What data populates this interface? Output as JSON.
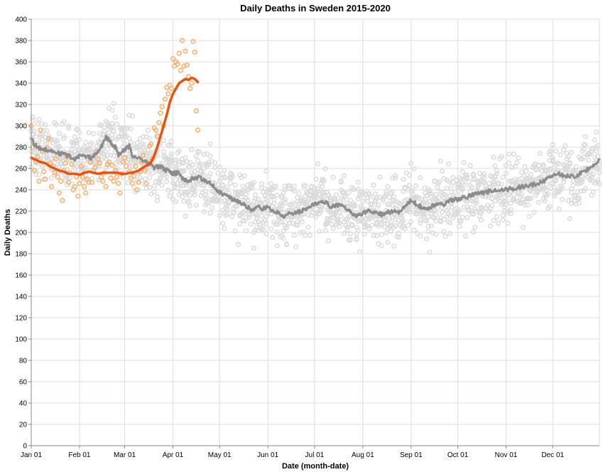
{
  "chart_data": {
    "type": "scatter",
    "title": "Daily Deaths in Sweden 2015-2020",
    "xlabel": "Date (month-date)",
    "ylabel": "Daily Deaths",
    "x_axis": {
      "type": "day-of-year",
      "range": [
        1,
        366
      ],
      "tick_labels": [
        "Jan 01",
        "Feb 01",
        "Mar 01",
        "Apr 01",
        "May 01",
        "Jun 01",
        "Jul 01",
        "Aug 01",
        "Sep 01",
        "Oct 01",
        "Nov 01",
        "Dec 01"
      ],
      "tick_days": [
        1,
        32,
        61,
        92,
        122,
        153,
        183,
        214,
        245,
        275,
        306,
        336
      ]
    },
    "y_axis": {
      "range": [
        0,
        400
      ],
      "ticks": [
        0,
        20,
        40,
        60,
        80,
        100,
        120,
        140,
        160,
        180,
        200,
        220,
        240,
        260,
        280,
        300,
        320,
        340,
        360,
        380,
        400
      ]
    },
    "grid": true,
    "legend": "none",
    "series": [
      {
        "kind": "scatter",
        "color": "#d9d9d9",
        "description_of_density": "5 years of daily values (2015-2019) shown as hollow grey circles",
        "daily_points": "generated from the grey trend line with scatter of about ±25 deaths per year",
        "points_per_day": 5
      },
      {
        "kind": "line",
        "color": "#8c8c8c",
        "line_width": 3,
        "points": [
          [
            1,
            290
          ],
          [
            3,
            282
          ],
          [
            6,
            279
          ],
          [
            10,
            278
          ],
          [
            15,
            276
          ],
          [
            20,
            274
          ],
          [
            25,
            272
          ],
          [
            28,
            268
          ],
          [
            32,
            272
          ],
          [
            36,
            271
          ],
          [
            40,
            270
          ],
          [
            44,
            275
          ],
          [
            47,
            283
          ],
          [
            49,
            290
          ],
          [
            52,
            284
          ],
          [
            55,
            280
          ],
          [
            57,
            273
          ],
          [
            60,
            276
          ],
          [
            62,
            278
          ],
          [
            64,
            281
          ],
          [
            66,
            272
          ],
          [
            70,
            270
          ],
          [
            73,
            268
          ],
          [
            76,
            265
          ],
          [
            80,
            261
          ],
          [
            84,
            262
          ],
          [
            88,
            258
          ],
          [
            92,
            255
          ],
          [
            95,
            256
          ],
          [
            98,
            251
          ],
          [
            101,
            248
          ],
          [
            104,
            250
          ],
          [
            108,
            252
          ],
          [
            112,
            249
          ],
          [
            116,
            247
          ],
          [
            120,
            240
          ],
          [
            124,
            236
          ],
          [
            128,
            233
          ],
          [
            132,
            230
          ],
          [
            136,
            227
          ],
          [
            140,
            224
          ],
          [
            143,
            220
          ],
          [
            146,
            224
          ],
          [
            150,
            222
          ],
          [
            153,
            224
          ],
          [
            156,
            220
          ],
          [
            160,
            218
          ],
          [
            163,
            215
          ],
          [
            167,
            218
          ],
          [
            171,
            219
          ],
          [
            175,
            220
          ],
          [
            179,
            224
          ],
          [
            183,
            226
          ],
          [
            187,
            230
          ],
          [
            190,
            228
          ],
          [
            194,
            224
          ],
          [
            197,
            225
          ],
          [
            201,
            226
          ],
          [
            204,
            222
          ],
          [
            207,
            218
          ],
          [
            210,
            216
          ],
          [
            214,
            218
          ],
          [
            218,
            220
          ],
          [
            222,
            219
          ],
          [
            226,
            217
          ],
          [
            230,
            219
          ],
          [
            234,
            220
          ],
          [
            238,
            219
          ],
          [
            242,
            226
          ],
          [
            245,
            230
          ],
          [
            248,
            227
          ],
          [
            252,
            223
          ],
          [
            256,
            222
          ],
          [
            259,
            225
          ],
          [
            263,
            228
          ],
          [
            266,
            226
          ],
          [
            270,
            230
          ],
          [
            274,
            231
          ],
          [
            278,
            232
          ],
          [
            282,
            234
          ],
          [
            286,
            236
          ],
          [
            290,
            237
          ],
          [
            294,
            238
          ],
          [
            298,
            240
          ],
          [
            302,
            240
          ],
          [
            306,
            240
          ],
          [
            310,
            241
          ],
          [
            314,
            242
          ],
          [
            318,
            243
          ],
          [
            322,
            244
          ],
          [
            326,
            246
          ],
          [
            330,
            248
          ],
          [
            334,
            252
          ],
          [
            338,
            255
          ],
          [
            342,
            254
          ],
          [
            346,
            253
          ],
          [
            350,
            252
          ],
          [
            354,
            256
          ],
          [
            358,
            259
          ],
          [
            362,
            263
          ],
          [
            366,
            268
          ]
        ]
      },
      {
        "kind": "line",
        "color": "#e6550d",
        "line_width": 3.5,
        "points": [
          [
            1,
            270
          ],
          [
            4,
            268
          ],
          [
            7,
            266
          ],
          [
            10,
            265
          ],
          [
            13,
            262
          ],
          [
            16,
            260
          ],
          [
            19,
            258
          ],
          [
            22,
            257
          ],
          [
            25,
            255
          ],
          [
            28,
            255
          ],
          [
            30,
            255
          ],
          [
            32,
            254
          ],
          [
            35,
            256
          ],
          [
            38,
            257
          ],
          [
            41,
            256
          ],
          [
            44,
            255
          ],
          [
            47,
            256
          ],
          [
            50,
            256
          ],
          [
            53,
            256
          ],
          [
            56,
            256
          ],
          [
            59,
            255
          ],
          [
            62,
            255
          ],
          [
            64,
            256
          ],
          [
            66,
            256
          ],
          [
            68,
            257
          ],
          [
            70,
            258
          ],
          [
            72,
            260
          ],
          [
            74,
            262
          ],
          [
            76,
            263
          ],
          [
            78,
            266
          ],
          [
            80,
            272
          ],
          [
            82,
            280
          ],
          [
            84,
            290
          ],
          [
            86,
            300
          ],
          [
            88,
            310
          ],
          [
            90,
            322
          ],
          [
            92,
            330
          ],
          [
            94,
            335
          ],
          [
            96,
            340
          ],
          [
            98,
            342
          ],
          [
            100,
            344
          ],
          [
            102,
            343
          ],
          [
            104,
            345
          ],
          [
            106,
            344
          ],
          [
            108,
            341
          ]
        ]
      },
      {
        "kind": "scatter",
        "color": "#fdae6b",
        "points": [
          [
            1,
            300
          ],
          [
            2,
            280
          ],
          [
            3,
            258
          ],
          [
            4,
            266
          ],
          [
            5,
            271
          ],
          [
            6,
            248
          ],
          [
            7,
            296
          ],
          [
            8,
            276
          ],
          [
            9,
            257
          ],
          [
            10,
            250
          ],
          [
            11,
            279
          ],
          [
            12,
            288
          ],
          [
            13,
            265
          ],
          [
            14,
            243
          ],
          [
            15,
            262
          ],
          [
            16,
            256
          ],
          [
            17,
            269
          ],
          [
            18,
            252
          ],
          [
            19,
            237
          ],
          [
            20,
            248
          ],
          [
            21,
            230
          ],
          [
            22,
            258
          ],
          [
            23,
            265
          ],
          [
            24,
            271
          ],
          [
            25,
            247
          ],
          [
            26,
            256
          ],
          [
            27,
            264
          ],
          [
            28,
            240
          ],
          [
            29,
            243
          ],
          [
            30,
            252
          ],
          [
            31,
            234
          ],
          [
            32,
            246
          ],
          [
            33,
            262
          ],
          [
            34,
            252
          ],
          [
            35,
            243
          ],
          [
            36,
            237
          ],
          [
            37,
            250
          ],
          [
            38,
            247
          ],
          [
            39,
            266
          ],
          [
            40,
            247
          ],
          [
            41,
            258
          ],
          [
            42,
            261
          ],
          [
            43,
            276
          ],
          [
            44,
            269
          ],
          [
            45,
            265
          ],
          [
            46,
            252
          ],
          [
            47,
            248
          ],
          [
            48,
            256
          ],
          [
            49,
            243
          ],
          [
            50,
            264
          ],
          [
            51,
            266
          ],
          [
            52,
            251
          ],
          [
            53,
            263
          ],
          [
            54,
            248
          ],
          [
            55,
            258
          ],
          [
            56,
            252
          ],
          [
            57,
            246
          ],
          [
            58,
            237
          ],
          [
            59,
            255
          ],
          [
            60,
            266
          ],
          [
            61,
            270
          ],
          [
            62,
            262
          ],
          [
            63,
            280
          ],
          [
            64,
            257
          ],
          [
            65,
            251
          ],
          [
            66,
            246
          ],
          [
            67,
            253
          ],
          [
            68,
            262
          ],
          [
            69,
            240
          ],
          [
            70,
            247
          ],
          [
            71,
            257
          ],
          [
            72,
            266
          ],
          [
            73,
            272
          ],
          [
            74,
            258
          ],
          [
            75,
            246
          ],
          [
            76,
            265
          ],
          [
            77,
            281
          ],
          [
            78,
            283
          ],
          [
            79,
            269
          ],
          [
            80,
            298
          ],
          [
            81,
            296
          ],
          [
            82,
            290
          ],
          [
            83,
            303
          ],
          [
            84,
            312
          ],
          [
            85,
            318
          ],
          [
            86,
            300
          ],
          [
            87,
            325
          ],
          [
            88,
            336
          ],
          [
            89,
            330
          ],
          [
            90,
            338
          ],
          [
            91,
            335
          ],
          [
            92,
            363
          ],
          [
            93,
            356
          ],
          [
            94,
            360
          ],
          [
            95,
            358
          ],
          [
            96,
            368
          ],
          [
            97,
            352
          ],
          [
            98,
            380
          ],
          [
            99,
            356
          ],
          [
            100,
            370
          ],
          [
            101,
            357
          ],
          [
            102,
            346
          ],
          [
            103,
            335
          ],
          [
            104,
            340
          ],
          [
            105,
            379
          ],
          [
            106,
            369
          ],
          [
            107,
            314
          ],
          [
            108,
            296
          ]
        ]
      }
    ]
  }
}
